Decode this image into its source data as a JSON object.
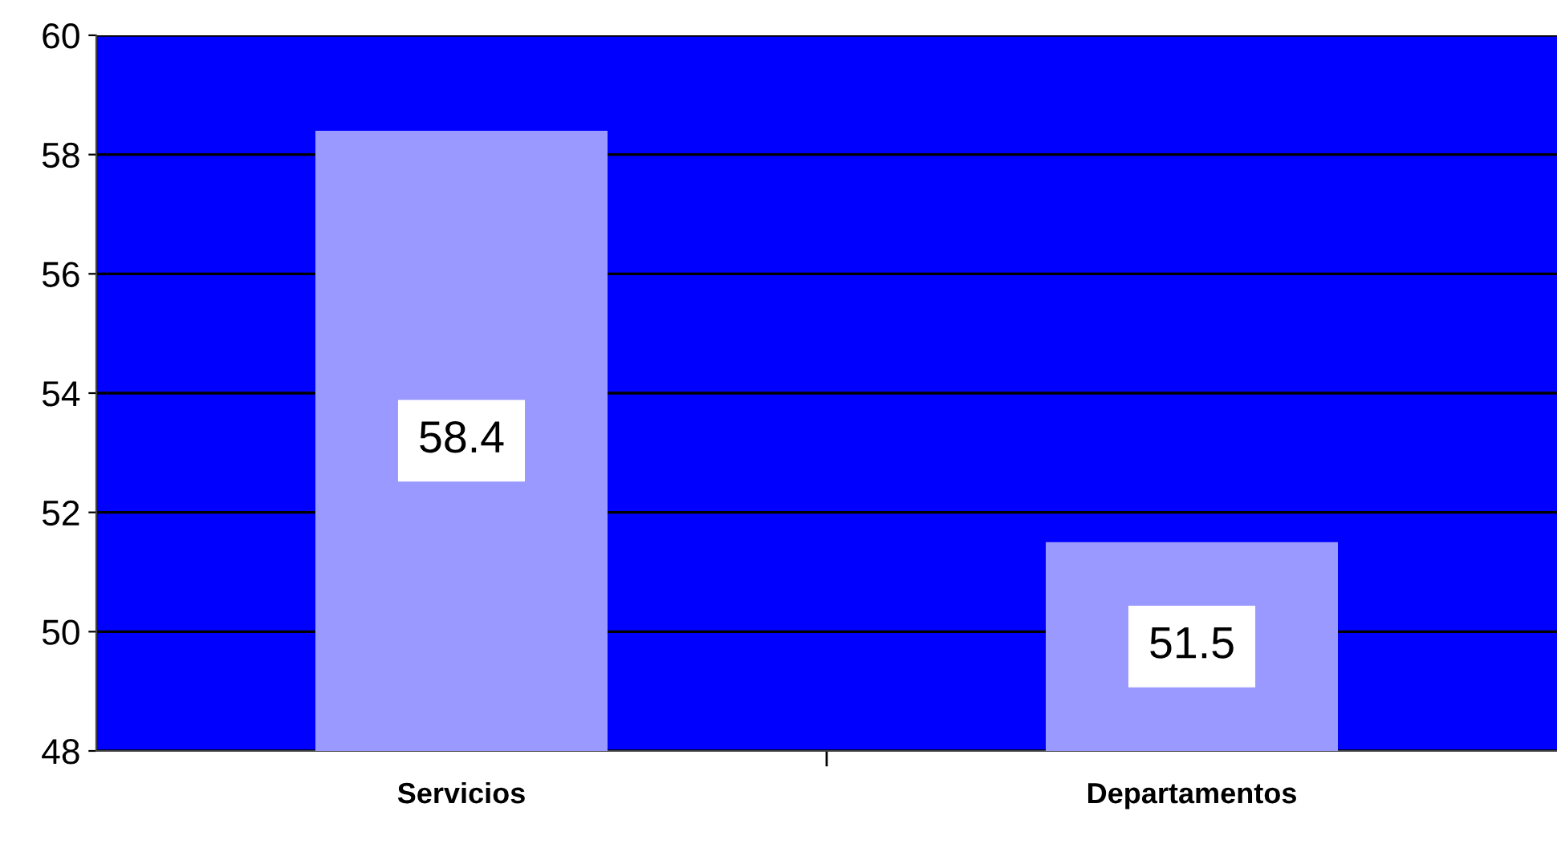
{
  "chart_data": {
    "type": "bar",
    "categories": [
      "Servicios",
      "Departamentos"
    ],
    "values": [
      58.4,
      51.5
    ],
    "color": "#9999ff",
    "ylim": [
      48,
      60
    ],
    "yticks": [
      48,
      50,
      52,
      54,
      56,
      58,
      60
    ],
    "grid": "y",
    "data_labels": true
  }
}
